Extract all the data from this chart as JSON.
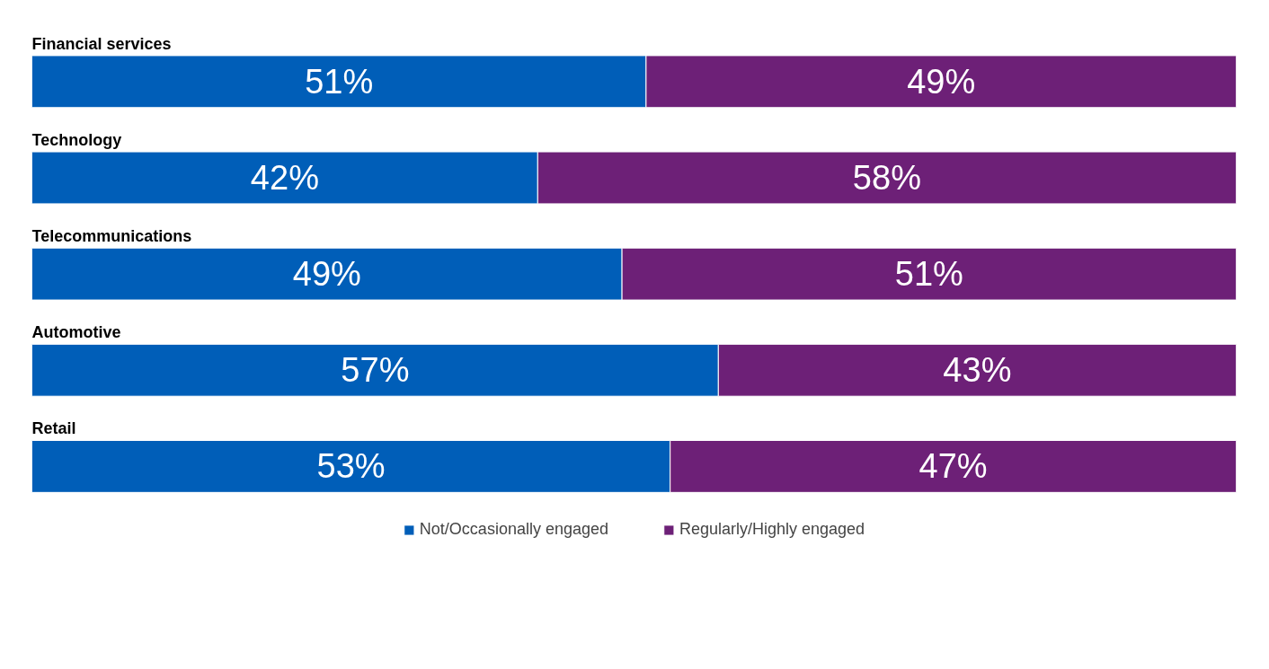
{
  "chart_data": {
    "type": "bar",
    "orientation": "horizontal",
    "stacked": true,
    "categories": [
      "Financial services",
      "Technology",
      "Telecommunications",
      "Automotive",
      "Retail"
    ],
    "series": [
      {
        "name": "Not/Occasionally engaged",
        "color": "#005eb8",
        "values": [
          51,
          42,
          49,
          57,
          53
        ],
        "value_labels": [
          "51%",
          "42%",
          "49%",
          "57%",
          "53%"
        ]
      },
      {
        "name": "Regularly/Highly engaged",
        "color": "#6d2077",
        "values": [
          49,
          58,
          51,
          43,
          47
        ],
        "value_labels": [
          "49%",
          "58%",
          "51%",
          "43%",
          "47%"
        ]
      }
    ],
    "xlim": [
      0,
      100
    ],
    "tick_labels": false,
    "grid": false,
    "legend": "bottom"
  }
}
